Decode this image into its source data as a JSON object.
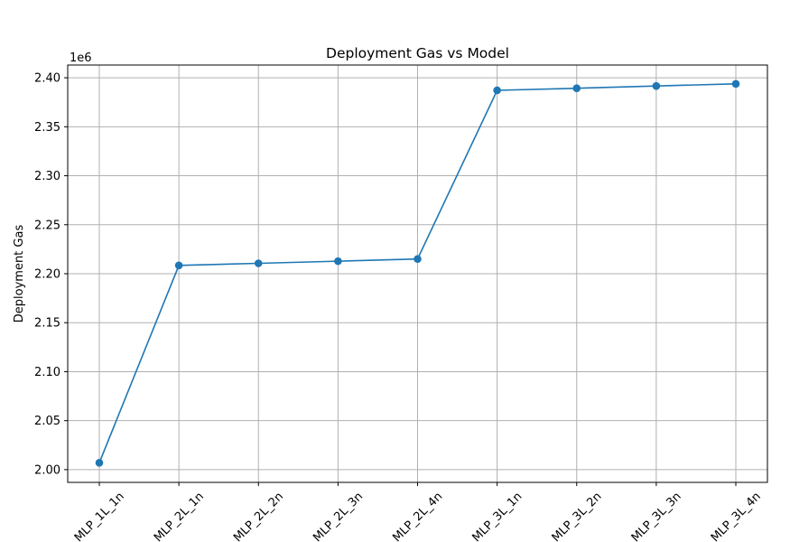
{
  "chart_data": {
    "type": "line",
    "title": "Deployment Gas vs Model",
    "xlabel": "",
    "ylabel": "Deployment Gas",
    "y_offset_label": "1e6",
    "y_scale_factor": 1000000,
    "categories": [
      "MLP_1L_1n",
      "MLP_2L_1n",
      "MLP_2L_2n",
      "MLP_2L_3n",
      "MLP_2L_4n",
      "MLP_3L_1n",
      "MLP_3L_2n",
      "MLP_3L_3n",
      "MLP_3L_4n"
    ],
    "series": [
      {
        "values": [
          2007000,
          2208500,
          2210600,
          2212800,
          2215000,
          2387200,
          2389300,
          2391600,
          2393800
        ]
      }
    ],
    "yticks": [
      2.0,
      2.05,
      2.1,
      2.15,
      2.2,
      2.25,
      2.3,
      2.35,
      2.4
    ],
    "ylim": [
      1987000,
      2413000
    ],
    "grid": true,
    "line_color": "#1f77b4",
    "marker": "circle"
  }
}
